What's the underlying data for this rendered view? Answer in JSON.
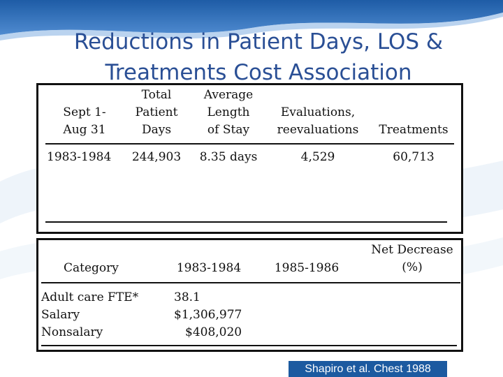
{
  "slide": {
    "title_line1": "Reductions in Patient Days, LOS &",
    "title_line2": "Treatments Cost Association",
    "accent_color": "#2a4f95",
    "citation": "Shapiro et al. Chest 1988"
  },
  "table1": {
    "headers": {
      "period": [
        "Sept 1-",
        "Aug 31"
      ],
      "total_days": [
        "Total",
        "Patient",
        "Days"
      ],
      "avg_los": [
        "Average",
        "Length",
        "of Stay"
      ],
      "evaluations": [
        "Evaluations,",
        "reevaluations"
      ],
      "treatments": [
        "Treatments"
      ]
    },
    "rows": [
      {
        "period": "1983-1984",
        "total_days": "244,903",
        "avg_los": "8.35 days",
        "evaluations": "4,529",
        "treatments": "60,713"
      }
    ]
  },
  "table2": {
    "headers": {
      "category": "Category",
      "y1": "1983-1984",
      "y2": "1985-1986",
      "net_decrease": [
        "Net Decrease",
        "(%)"
      ]
    },
    "rows": [
      {
        "category": "Adult care FTE*",
        "y1": "38.1"
      },
      {
        "category": "Salary",
        "y1": "$1,306,977"
      },
      {
        "category": "Nonsalary",
        "y1": "$408,020"
      }
    ]
  }
}
